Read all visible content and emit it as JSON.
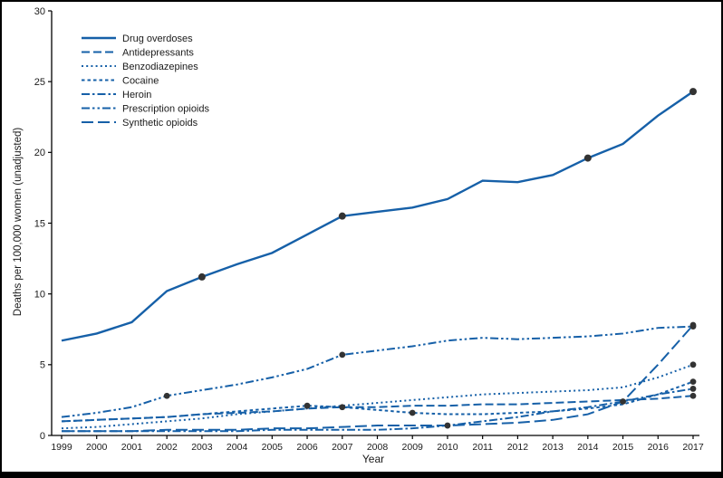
{
  "figure": {
    "background": "#ffffff",
    "border_color": "#000000"
  },
  "chart_data": {
    "type": "line",
    "xlabel": "Year",
    "ylabel": "Deaths per 100,000 women (unadjusted)",
    "x": [
      1999,
      2000,
      2001,
      2002,
      2003,
      2004,
      2005,
      2006,
      2007,
      2008,
      2009,
      2010,
      2011,
      2012,
      2013,
      2014,
      2015,
      2016,
      2017
    ],
    "ylim": [
      0,
      30
    ],
    "yticks": [
      0,
      5,
      10,
      15,
      20,
      25,
      30
    ],
    "grid": false,
    "legend_position": "top-left",
    "line_color": "#1660a8",
    "marker_color": "#333333",
    "series": [
      {
        "name": "Drug overdoses",
        "style": "solid",
        "width": 2.4,
        "values": [
          6.7,
          7.2,
          8.0,
          10.2,
          11.2,
          12.1,
          12.9,
          14.2,
          15.5,
          15.8,
          16.1,
          16.7,
          18.0,
          17.9,
          18.4,
          19.6,
          20.6,
          22.6,
          24.3
        ],
        "dots": [
          2003,
          2007,
          2014,
          2017
        ]
      },
      {
        "name": "Antidepressants",
        "style": "dashed",
        "width": 2,
        "values": [
          1.0,
          1.1,
          1.2,
          1.3,
          1.5,
          1.6,
          1.7,
          1.9,
          2.0,
          2.0,
          2.1,
          2.1,
          2.2,
          2.2,
          2.3,
          2.4,
          2.5,
          2.6,
          2.8
        ],
        "dots": [
          2007,
          2017
        ]
      },
      {
        "name": "Benzodiazepines",
        "style": "dotted",
        "width": 2,
        "values": [
          0.5,
          0.6,
          0.8,
          1.0,
          1.2,
          1.5,
          1.7,
          1.9,
          2.1,
          2.3,
          2.5,
          2.7,
          2.9,
          3.0,
          3.1,
          3.2,
          3.4,
          4.1,
          5.0
        ],
        "dots": [
          2017
        ]
      },
      {
        "name": "Cocaine",
        "style": "short-dash",
        "width": 2,
        "values": [
          1.0,
          1.1,
          1.2,
          1.3,
          1.5,
          1.7,
          1.9,
          2.1,
          2.0,
          1.8,
          1.6,
          1.5,
          1.5,
          1.6,
          1.7,
          1.9,
          2.2,
          2.9,
          3.8
        ],
        "dots": [
          2006,
          2009,
          2017
        ]
      },
      {
        "name": "Heroin",
        "style": "dash-dot",
        "width": 2,
        "values": [
          0.3,
          0.3,
          0.3,
          0.3,
          0.3,
          0.3,
          0.4,
          0.4,
          0.4,
          0.4,
          0.5,
          0.7,
          1.0,
          1.3,
          1.7,
          2.0,
          2.4,
          2.9,
          3.3
        ],
        "dots": [
          2010,
          2017
        ]
      },
      {
        "name": "Prescription opioids",
        "style": "dash-dot-dot",
        "width": 2,
        "values": [
          1.3,
          1.6,
          2.0,
          2.8,
          3.2,
          3.6,
          4.1,
          4.7,
          5.7,
          6.0,
          6.3,
          6.7,
          6.9,
          6.8,
          6.9,
          7.0,
          7.2,
          7.6,
          7.7
        ],
        "dots": [
          2002,
          2007,
          2017
        ]
      },
      {
        "name": "Synthetic opioids",
        "style": "long-dash",
        "width": 2,
        "values": [
          0.3,
          0.3,
          0.3,
          0.4,
          0.4,
          0.4,
          0.5,
          0.5,
          0.6,
          0.7,
          0.7,
          0.7,
          0.8,
          0.9,
          1.1,
          1.5,
          2.4,
          5.0,
          7.8
        ],
        "dots": [
          2015,
          2017
        ]
      }
    ]
  }
}
